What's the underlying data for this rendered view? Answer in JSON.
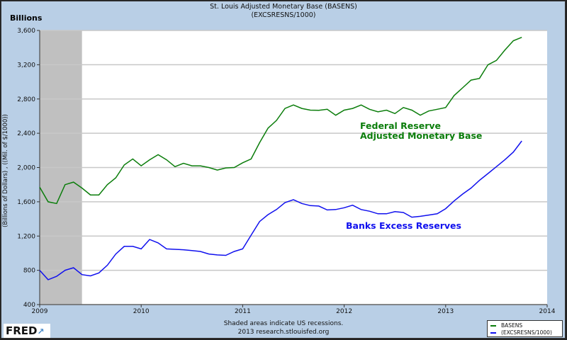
{
  "chart_data": {
    "type": "line",
    "title": "St. Louis Adjusted Monetary Base (BASENS)",
    "subtitle": "(EXCSRESNS/1000)",
    "units_label": "Billions",
    "ylabel": "(Billions of Dollars) , ((Mil. of $/1000))",
    "xlabel": "",
    "ylim": [
      400,
      3600
    ],
    "yticks": [
      "400",
      "800",
      "1,200",
      "1,600",
      "2,000",
      "2,400",
      "2,800",
      "3,200",
      "3,600"
    ],
    "xlim": [
      "2009-01",
      "2014-01"
    ],
    "xticks": [
      "2009",
      "2010",
      "2011",
      "2012",
      "2013",
      "2014"
    ],
    "grid": "horizontal",
    "recessions": [
      {
        "start": "2009-01",
        "end": "2009-06"
      }
    ],
    "x": [
      "2009-01",
      "2009-02",
      "2009-03",
      "2009-04",
      "2009-05",
      "2009-06",
      "2009-07",
      "2009-08",
      "2009-09",
      "2009-10",
      "2009-11",
      "2009-12",
      "2010-01",
      "2010-02",
      "2010-03",
      "2010-04",
      "2010-05",
      "2010-06",
      "2010-07",
      "2010-08",
      "2010-09",
      "2010-10",
      "2010-11",
      "2010-12",
      "2011-01",
      "2011-02",
      "2011-03",
      "2011-04",
      "2011-05",
      "2011-06",
      "2011-07",
      "2011-08",
      "2011-09",
      "2011-10",
      "2011-11",
      "2011-12",
      "2012-01",
      "2012-02",
      "2012-03",
      "2012-04",
      "2012-05",
      "2012-06",
      "2012-07",
      "2012-08",
      "2012-09",
      "2012-10",
      "2012-11",
      "2012-12",
      "2013-01",
      "2013-02",
      "2013-03",
      "2013-04",
      "2013-05",
      "2013-06",
      "2013-07",
      "2013-08",
      "2013-09",
      "2013-10"
    ],
    "series": [
      {
        "name": "BASENS",
        "color": "#0b7d0b",
        "values": [
          1770,
          1600,
          1580,
          1800,
          1830,
          1760,
          1680,
          1680,
          1800,
          1880,
          2030,
          2100,
          2020,
          2090,
          2150,
          2090,
          2010,
          2050,
          2020,
          2020,
          2000,
          1970,
          1995,
          2000,
          2055,
          2100,
          2290,
          2460,
          2550,
          2690,
          2730,
          2690,
          2670,
          2667,
          2680,
          2610,
          2670,
          2690,
          2730,
          2680,
          2650,
          2670,
          2630,
          2700,
          2670,
          2610,
          2660,
          2680,
          2700,
          2840,
          2930,
          3020,
          3040,
          3200,
          3250,
          3370,
          3480,
          3520
        ]
      },
      {
        "name": "(EXCSRESNS/1000)",
        "color": "#1010ee",
        "values": [
          800,
          690,
          730,
          800,
          830,
          750,
          735,
          770,
          860,
          990,
          1080,
          1080,
          1050,
          1160,
          1120,
          1050,
          1045,
          1040,
          1030,
          1020,
          990,
          980,
          975,
          1020,
          1050,
          1210,
          1370,
          1450,
          1510,
          1590,
          1625,
          1580,
          1555,
          1550,
          1505,
          1510,
          1530,
          1560,
          1510,
          1490,
          1460,
          1460,
          1485,
          1475,
          1420,
          1430,
          1445,
          1460,
          1520,
          1610,
          1690,
          1760,
          1850,
          1930,
          2010,
          2090,
          2180,
          2310
        ]
      }
    ],
    "annotations": [
      {
        "line1": "Federal Reserve",
        "line2": "Adjusted Monetary Base",
        "color": "#0b7d0b"
      },
      {
        "line1": "Banks Excess Reserves",
        "color": "#1010ee"
      }
    ],
    "legend": {
      "placement": "bottom-right",
      "entries": [
        "BASENS",
        "(EXCSRESNS/1000)"
      ]
    }
  },
  "footer": {
    "note": "Shaded areas indicate US recessions.",
    "source": "2013 research.stlouisfed.org",
    "logo": "FRED"
  }
}
